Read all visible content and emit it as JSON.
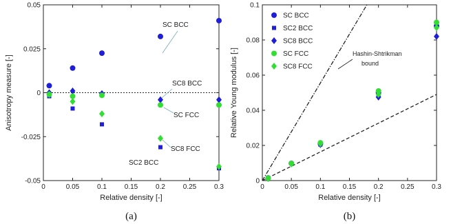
{
  "colors": {
    "blue": "#1f1fd6",
    "green": "#33dd33"
  },
  "chart_data": [
    {
      "type": "scatter",
      "panel_label": "(a)",
      "title": "",
      "xlabel": "Relative density [-]",
      "ylabel": "Anisotropy measure [-]",
      "xlim": [
        0,
        0.3
      ],
      "ylim": [
        -0.05,
        0.05
      ],
      "xticks": [
        0,
        0.05,
        0.1,
        0.15,
        0.2,
        0.25,
        0.3
      ],
      "xtick_labels": [
        "0",
        "0.05",
        "0.1",
        "0.15",
        "0.2",
        "0.25",
        "0.3"
      ],
      "yticks": [
        -0.05,
        -0.025,
        0,
        0.025,
        0.05
      ],
      "ytick_labels": [
        "-0.05",
        "-0.025",
        "0",
        "0.025",
        "0.05"
      ],
      "grid": false,
      "reference_line": {
        "y": 0,
        "style": "dotted"
      },
      "series": [
        {
          "name": "SC BCC",
          "marker": "circle",
          "color": "#1f1fd6",
          "x": [
            0.01,
            0.05,
            0.1,
            0.2,
            0.3
          ],
          "y": [
            0.004,
            0.014,
            0.0225,
            0.032,
            0.041
          ]
        },
        {
          "name": "SC2 BCC",
          "marker": "square",
          "color": "#1f1fd6",
          "x": [
            0.01,
            0.05,
            0.1,
            0.2,
            0.3
          ],
          "y": [
            -0.002,
            -0.009,
            -0.018,
            -0.031,
            -0.043
          ]
        },
        {
          "name": "SC8 BCC",
          "marker": "diamond",
          "color": "#1f1fd6",
          "x": [
            0.01,
            0.05,
            0.1,
            0.2,
            0.3
          ],
          "y": [
            0.0,
            0.001,
            -0.0005,
            -0.004,
            -0.004
          ]
        },
        {
          "name": "SC FCC",
          "marker": "circle",
          "color": "#33dd33",
          "x": [
            0.01,
            0.05,
            0.1,
            0.2,
            0.3
          ],
          "y": [
            -0.001,
            -0.002,
            -0.0015,
            -0.007,
            -0.007
          ]
        },
        {
          "name": "SC8 FCC",
          "marker": "diamond",
          "color": "#33dd33",
          "x": [
            0.01,
            0.05,
            0.1,
            0.2,
            0.3
          ],
          "y": [
            -0.001,
            -0.005,
            -0.012,
            -0.026,
            -0.042
          ]
        }
      ],
      "annotations": [
        {
          "text": "SC BCC"
        },
        {
          "text": "SC8 BCC"
        },
        {
          "text": "SC FCC"
        },
        {
          "text": "SC8 FCC"
        },
        {
          "text": "SC2 BCC"
        }
      ]
    },
    {
      "type": "scatter",
      "panel_label": "(b)",
      "title": "",
      "xlabel": "Relative density [-]",
      "ylabel": "Relative Young modulus [-]",
      "xlim": [
        0,
        0.3
      ],
      "ylim": [
        0,
        0.1
      ],
      "xticks": [
        0,
        0.05,
        0.1,
        0.15,
        0.2,
        0.25,
        0.3
      ],
      "xtick_labels": [
        "0",
        "0.05",
        "0.1",
        "0.15",
        "0.2",
        "0.25",
        "0.3"
      ],
      "yticks": [
        0,
        0.02,
        0.04,
        0.06,
        0.08,
        0.1
      ],
      "ytick_labels": [
        "0",
        "0.02",
        "0.04",
        "0.06",
        "0.08",
        "0.1"
      ],
      "grid": false,
      "legend": {
        "placement": "top-left",
        "entries": [
          "SC BCC",
          "SC2 BCC",
          "SC8 BCC",
          "SC FCC",
          "SC8 FCC"
        ]
      },
      "bounds": [
        {
          "style": "dash-dot",
          "x": [
            0,
            0.18
          ],
          "y": [
            0,
            0.1
          ]
        },
        {
          "style": "dashed",
          "x": [
            0,
            0.3
          ],
          "y": [
            0,
            0.049
          ]
        }
      ],
      "bound_label": [
        "Hashin-Shtrikman",
        "bound"
      ],
      "series": [
        {
          "name": "SC BCC",
          "marker": "circle",
          "color": "#1f1fd6",
          "x": [
            0.01,
            0.05,
            0.1,
            0.2,
            0.3
          ],
          "y": [
            0.0015,
            0.0098,
            0.021,
            0.05,
            0.088
          ]
        },
        {
          "name": "SC2 BCC",
          "marker": "square",
          "color": "#1f1fd6",
          "x": [
            0.01,
            0.05,
            0.1,
            0.2,
            0.3
          ],
          "y": [
            0.0015,
            0.0098,
            0.0205,
            0.049,
            0.089
          ]
        },
        {
          "name": "SC8 BCC",
          "marker": "diamond",
          "color": "#1f1fd6",
          "x": [
            0.01,
            0.05,
            0.1,
            0.2,
            0.3
          ],
          "y": [
            0.0012,
            0.0095,
            0.0205,
            0.0475,
            0.082
          ]
        },
        {
          "name": "SC FCC",
          "marker": "circle",
          "color": "#33dd33",
          "x": [
            0.01,
            0.05,
            0.1,
            0.2,
            0.3
          ],
          "y": [
            0.0014,
            0.0098,
            0.0215,
            0.051,
            0.09
          ]
        },
        {
          "name": "SC8 FCC",
          "marker": "diamond",
          "color": "#33dd33",
          "x": [
            0.01,
            0.05,
            0.1,
            0.2,
            0.3
          ],
          "y": [
            0.0012,
            0.0095,
            0.021,
            0.049,
            0.087
          ]
        }
      ]
    }
  ]
}
